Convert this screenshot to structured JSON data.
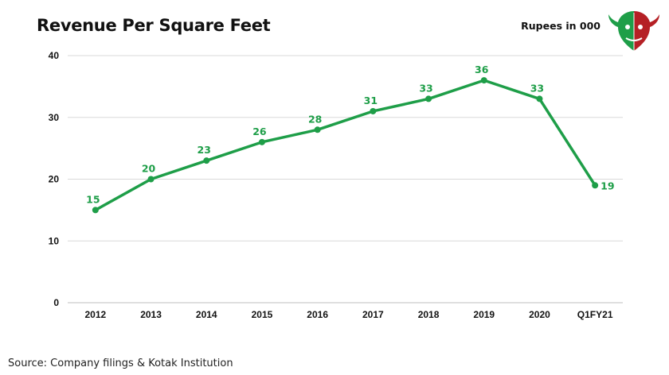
{
  "header": {
    "title": "Revenue Per Square Feet",
    "units": "Rupees in 000",
    "logo_icon": "bull-bear-logo-icon"
  },
  "footer": {
    "source": "Source: Company filings & Kotak Institution"
  },
  "colors": {
    "line": "#1e9e48",
    "label": "#1e9e48",
    "grid": "#d9d9d9",
    "axis": "#bfbfbf",
    "logo_green": "#1e9e48",
    "logo_red": "#b52025"
  },
  "chart_data": {
    "type": "line",
    "title": "Revenue Per Square Feet",
    "xlabel": "",
    "ylabel": "",
    "categories": [
      "2012",
      "2013",
      "2014",
      "2015",
      "2016",
      "2017",
      "2018",
      "2019",
      "2020",
      "Q1FY21"
    ],
    "series": [
      {
        "values": [
          15,
          20,
          23,
          26,
          28,
          31,
          33,
          36,
          33,
          19
        ]
      }
    ],
    "ylim": [
      0,
      40
    ],
    "yticks": [
      0,
      10,
      20,
      30,
      40
    ],
    "grid": true,
    "data_labels": true,
    "legend": "none"
  }
}
